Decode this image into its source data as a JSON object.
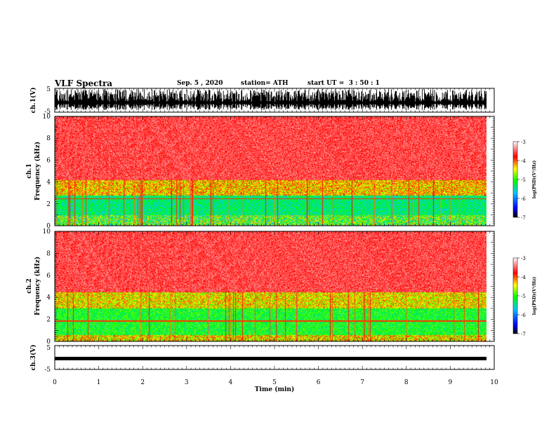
{
  "header": {
    "title": "VLF Spectra",
    "date": "Sep. 5 , 2020",
    "station": "station= ATH",
    "start": "start UT =  3 : 50 : 1"
  },
  "colors": {
    "spectrogram_scale": [
      "#000000",
      "#0000ff",
      "#00c0ff",
      "#00ff00",
      "#ffff00",
      "#ff0000",
      "#ffffff"
    ]
  },
  "chart_data": [
    {
      "type": "line",
      "panel": "ch1-waveform",
      "ylabel": "ch.1(V)",
      "ylim": [
        -5,
        5
      ],
      "yticks": [
        "5",
        "-5"
      ],
      "xlim": [
        0,
        10
      ]
    },
    {
      "type": "heatmap",
      "panel": "ch1-spectrogram",
      "ylabel_top": "ch.1",
      "ylabel": "Frequency (kHz)",
      "ylim": [
        0,
        10
      ],
      "yticks": [
        "0",
        "2",
        "4",
        "6",
        "8",
        "10"
      ],
      "xlim": [
        0,
        10
      ],
      "colorbar": {
        "label": "log(PSD)(V²/Hz)",
        "range": [
          -7,
          -3
        ],
        "ticks": [
          "-3",
          "-4",
          "-5",
          "-6",
          "-7"
        ]
      }
    },
    {
      "type": "heatmap",
      "panel": "ch2-spectrogram",
      "ylabel_top": "ch.2",
      "ylabel": "Frequency (kHz)",
      "ylim": [
        0,
        10
      ],
      "yticks": [
        "0",
        "2",
        "4",
        "6",
        "8",
        "10"
      ],
      "xlim": [
        0,
        10
      ],
      "colorbar": {
        "label": "log(PSD)(V²/Hz)",
        "range": [
          -7,
          -3
        ],
        "ticks": [
          "-3",
          "-4",
          "-5",
          "-6",
          "-7"
        ]
      }
    },
    {
      "type": "line",
      "panel": "ch3-waveform",
      "ylabel": "ch.3(V)",
      "ylim": [
        -5,
        5
      ],
      "yticks": [
        "5",
        "-5"
      ],
      "xlim": [
        0,
        10
      ],
      "xlabel": "Time (min)",
      "xticks": [
        "0",
        "1",
        "2",
        "3",
        "4",
        "5",
        "6",
        "7",
        "8",
        "9",
        "10"
      ]
    }
  ]
}
